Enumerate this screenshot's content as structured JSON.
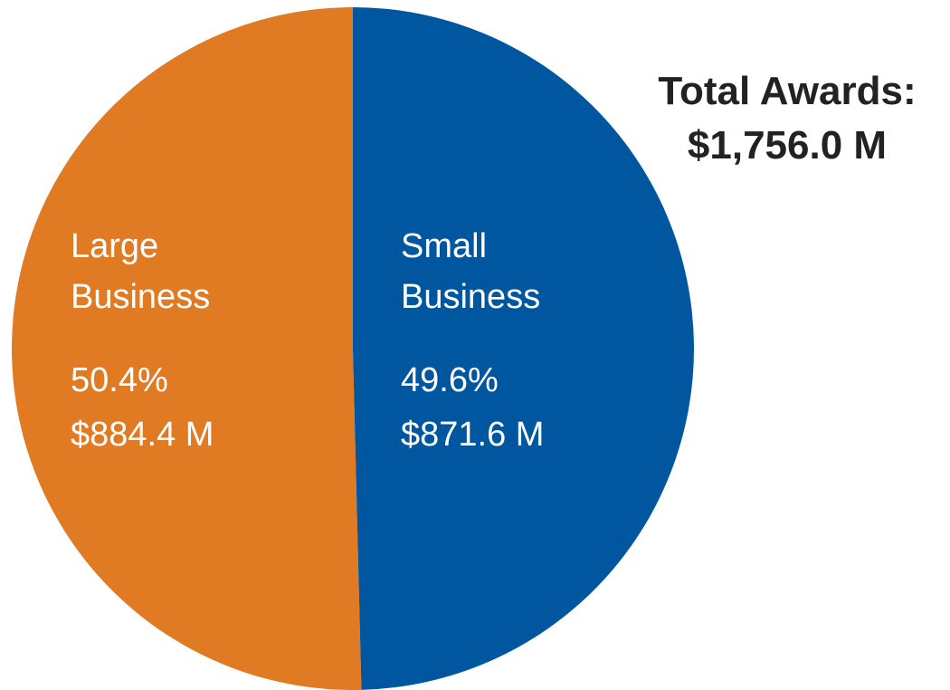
{
  "chart_data": {
    "type": "pie",
    "categories": [
      "Large Business",
      "Small Business"
    ],
    "values": [
      50.4,
      49.6
    ],
    "value_labels": [
      "50.4%",
      "49.6%"
    ],
    "amounts": [
      884.4,
      871.6
    ],
    "amount_labels": [
      "$884.4 M",
      "$871.6 M"
    ],
    "colors": [
      "#e07b24",
      "#0057a0"
    ],
    "total_title": "Total Awards:",
    "total": 1756.0,
    "total_label": "$1,756.0 M"
  }
}
